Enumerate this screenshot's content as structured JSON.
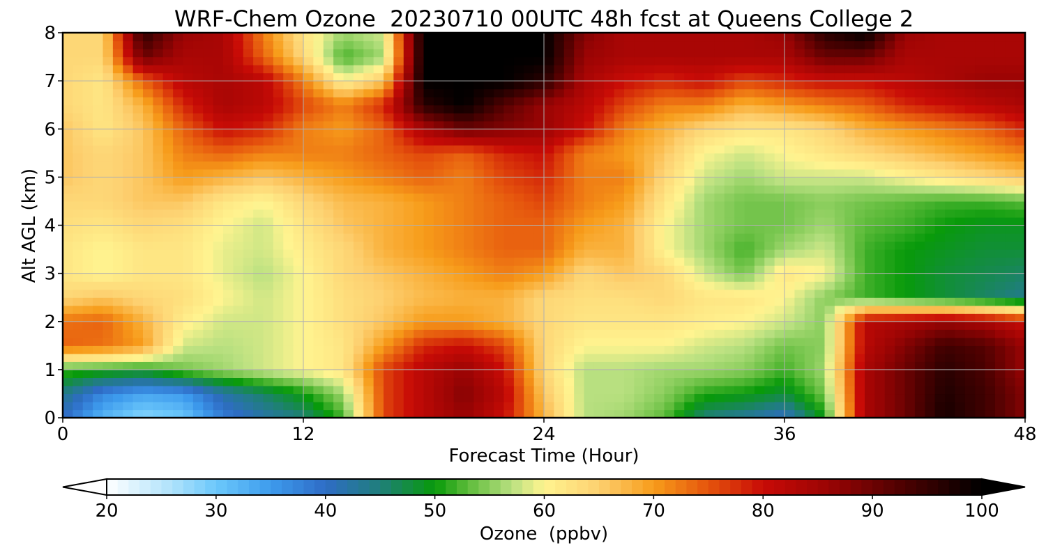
{
  "chart_data": {
    "type": "heatmap",
    "title": "WRF-Chem Ozone  20230710 00UTC 48h fcst at Queens College 2",
    "xlabel": "Forecast Time (Hour)",
    "ylabel": "Alt AGL (km)",
    "xlim": [
      0,
      48
    ],
    "ylim": [
      0,
      8
    ],
    "x_ticks": [
      "0",
      "12",
      "24",
      "36",
      "48"
    ],
    "y_ticks": [
      "0",
      "1",
      "2",
      "3",
      "4",
      "5",
      "6",
      "7",
      "8"
    ],
    "grid": true,
    "colorbar": {
      "label": "Ozone  (ppbv)",
      "range": [
        20,
        100
      ],
      "ticks": [
        "20",
        "30",
        "40",
        "50",
        "60",
        "70",
        "80",
        "90",
        "100"
      ],
      "extend": "both",
      "colors": [
        {
          "value": 20,
          "color": "#ffffff"
        },
        {
          "value": 26,
          "color": "#aee2fb"
        },
        {
          "value": 30,
          "color": "#6cc8fb"
        },
        {
          "value": 35,
          "color": "#3d9bed"
        },
        {
          "value": 40,
          "color": "#2e6cc6"
        },
        {
          "value": 45,
          "color": "#1f7f7a"
        },
        {
          "value": 50,
          "color": "#089a0a"
        },
        {
          "value": 53,
          "color": "#5dbb3a"
        },
        {
          "value": 57,
          "color": "#b8e080"
        },
        {
          "value": 60,
          "color": "#fff490"
        },
        {
          "value": 65,
          "color": "#fdd070"
        },
        {
          "value": 70,
          "color": "#f79c1a"
        },
        {
          "value": 75,
          "color": "#e5540d"
        },
        {
          "value": 80,
          "color": "#c80b06"
        },
        {
          "value": 86,
          "color": "#9a0404"
        },
        {
          "value": 93,
          "color": "#4a0101"
        },
        {
          "value": 100,
          "color": "#000000"
        }
      ]
    },
    "altitudes_km": [
      0,
      0.5,
      1,
      1.5,
      2,
      2.5,
      3,
      3.5,
      4,
      4.5,
      5,
      5.5,
      6,
      6.5,
      7,
      7.5,
      8
    ],
    "hours": [
      0,
      2,
      4,
      6,
      8,
      10,
      12,
      14,
      16,
      18,
      20,
      22,
      24,
      26,
      28,
      30,
      32,
      34,
      36,
      38,
      40,
      42,
      44,
      46,
      48
    ],
    "ozone_ppbv": [
      [
        40,
        32,
        28,
        30,
        38,
        42,
        45,
        52,
        76,
        82,
        86,
        80,
        68,
        57,
        56,
        53,
        45,
        43,
        40,
        50,
        84,
        90,
        98,
        94,
        88
      ],
      [
        44,
        37,
        34,
        35,
        42,
        46,
        50,
        56,
        76,
        82,
        88,
        82,
        66,
        57,
        57,
        55,
        51,
        50,
        48,
        54,
        84,
        90,
        97,
        94,
        88
      ],
      [
        52,
        51,
        50,
        54,
        56,
        58,
        60,
        62,
        76,
        82,
        86,
        80,
        64,
        57,
        57,
        56,
        56,
        55,
        52,
        56,
        84,
        90,
        96,
        93,
        86
      ],
      [
        74,
        73,
        70,
        58,
        57,
        58,
        60,
        62,
        70,
        78,
        80,
        76,
        64,
        60,
        60,
        60,
        58,
        57,
        54,
        55,
        82,
        88,
        94,
        92,
        86
      ],
      [
        73,
        74,
        68,
        61,
        58,
        58,
        60,
        63,
        66,
        70,
        70,
        68,
        64,
        62,
        62,
        62,
        61,
        60,
        58,
        55,
        82,
        84,
        86,
        84,
        80
      ],
      [
        64,
        66,
        64,
        63,
        60,
        58,
        60,
        63,
        65,
        67,
        68,
        68,
        64,
        63,
        63,
        64,
        62,
        62,
        60,
        55,
        52,
        50,
        48,
        46,
        44
      ],
      [
        62,
        60,
        62,
        62,
        59,
        57,
        60,
        64,
        66,
        68,
        70,
        72,
        70,
        64,
        66,
        64,
        58,
        54,
        62,
        60,
        52,
        50,
        48,
        47,
        46
      ],
      [
        62,
        60,
        62,
        62,
        59,
        58,
        61,
        64,
        68,
        70,
        72,
        74,
        74,
        68,
        68,
        60,
        56,
        52,
        56,
        58,
        52,
        50,
        49,
        48,
        48
      ],
      [
        63,
        62,
        64,
        63,
        60,
        58,
        62,
        66,
        68,
        70,
        72,
        74,
        74,
        70,
        68,
        60,
        56,
        54,
        54,
        56,
        53,
        52,
        50,
        49,
        49
      ],
      [
        64,
        64,
        66,
        66,
        62,
        60,
        64,
        67,
        68,
        70,
        72,
        74,
        76,
        72,
        70,
        62,
        56,
        54,
        54,
        55,
        54,
        53,
        52,
        52,
        53
      ],
      [
        66,
        64,
        66,
        70,
        68,
        66,
        68,
        70,
        72,
        74,
        72,
        76,
        78,
        72,
        72,
        64,
        58,
        56,
        58,
        58,
        58,
        60,
        62,
        64,
        66
      ],
      [
        66,
        64,
        66,
        72,
        74,
        72,
        72,
        72,
        74,
        76,
        74,
        78,
        80,
        72,
        70,
        66,
        60,
        58,
        60,
        62,
        64,
        66,
        68,
        70,
        72
      ],
      [
        66,
        62,
        66,
        74,
        80,
        78,
        72,
        70,
        74,
        84,
        90,
        88,
        86,
        80,
        72,
        68,
        64,
        62,
        62,
        64,
        68,
        70,
        72,
        74,
        78
      ],
      [
        64,
        62,
        68,
        78,
        84,
        82,
        76,
        72,
        78,
        96,
        100,
        92,
        86,
        82,
        76,
        72,
        72,
        68,
        70,
        72,
        74,
        78,
        80,
        82,
        84
      ],
      [
        64,
        62,
        74,
        82,
        84,
        82,
        72,
        60,
        66,
        100,
        100,
        100,
        96,
        84,
        80,
        78,
        80,
        76,
        78,
        80,
        80,
        82,
        84,
        86,
        86
      ],
      [
        64,
        64,
        90,
        84,
        84,
        74,
        64,
        52,
        56,
        100,
        100,
        100,
        100,
        86,
        84,
        84,
        84,
        84,
        84,
        90,
        90,
        84,
        84,
        84,
        84
      ],
      [
        64,
        64,
        96,
        86,
        84,
        72,
        62,
        56,
        58,
        100,
        100,
        100,
        100,
        88,
        84,
        84,
        84,
        84,
        86,
        96,
        100,
        86,
        84,
        84,
        84
      ]
    ]
  }
}
